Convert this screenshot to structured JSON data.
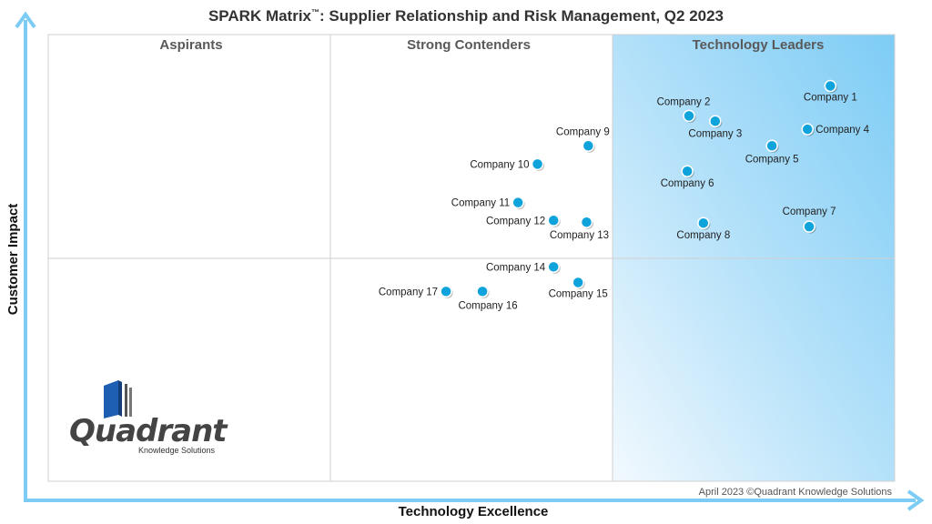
{
  "title": {
    "main": "SPARK Matrix",
    "tm": "™",
    "rest": ": Supplier Relationship and Risk Management, Q2 2023"
  },
  "axes": {
    "x_label": "Technology Excellence",
    "y_label": "Customer Impact"
  },
  "quadrants": {
    "aspirants": "Aspirants",
    "contenders": "Strong Contenders",
    "leaders": "Technology Leaders"
  },
  "copyright": "April 2023 ©Quadrant Knowledge Solutions",
  "logo": {
    "word": "Quadrant",
    "sub": "Knowledge Solutions"
  },
  "colors": {
    "dot": "#0fa3dc",
    "leader_bg": "#7dccf5",
    "axis_arrow": "#7dccf5"
  },
  "chart_data": {
    "type": "scatter",
    "title": "SPARK Matrix™: Supplier Relationship and Risk Management, Q2 2023",
    "xlabel": "Technology Excellence",
    "ylabel": "Customer Impact",
    "xlim": [
      0,
      100
    ],
    "ylim": [
      0,
      100
    ],
    "grid": false,
    "points": [
      {
        "label": "Company 1",
        "x": 92.4,
        "y": 88.5
      },
      {
        "label": "Company 2",
        "x": 75.7,
        "y": 81.8
      },
      {
        "label": "Company 3",
        "x": 78.8,
        "y": 80.6
      },
      {
        "label": "Company 4",
        "x": 89.7,
        "y": 78.8
      },
      {
        "label": "Company 5",
        "x": 85.5,
        "y": 75.1
      },
      {
        "label": "Company 6",
        "x": 75.5,
        "y": 69.4
      },
      {
        "label": "Company 7",
        "x": 89.9,
        "y": 57.0
      },
      {
        "label": "Company 8",
        "x": 77.4,
        "y": 57.8
      },
      {
        "label": "Company 9",
        "x": 63.8,
        "y": 75.1
      },
      {
        "label": "Company 10",
        "x": 57.8,
        "y": 71.0
      },
      {
        "label": "Company 11",
        "x": 55.5,
        "y": 62.4
      },
      {
        "label": "Company 12",
        "x": 59.7,
        "y": 58.4
      },
      {
        "label": "Company 13",
        "x": 63.6,
        "y": 58.0
      },
      {
        "label": "Company 14",
        "x": 59.7,
        "y": 48.0
      },
      {
        "label": "Company 15",
        "x": 62.6,
        "y": 44.5
      },
      {
        "label": "Company 16",
        "x": 51.3,
        "y": 42.5
      },
      {
        "label": "Company 17",
        "x": 47.0,
        "y": 42.5
      }
    ]
  }
}
